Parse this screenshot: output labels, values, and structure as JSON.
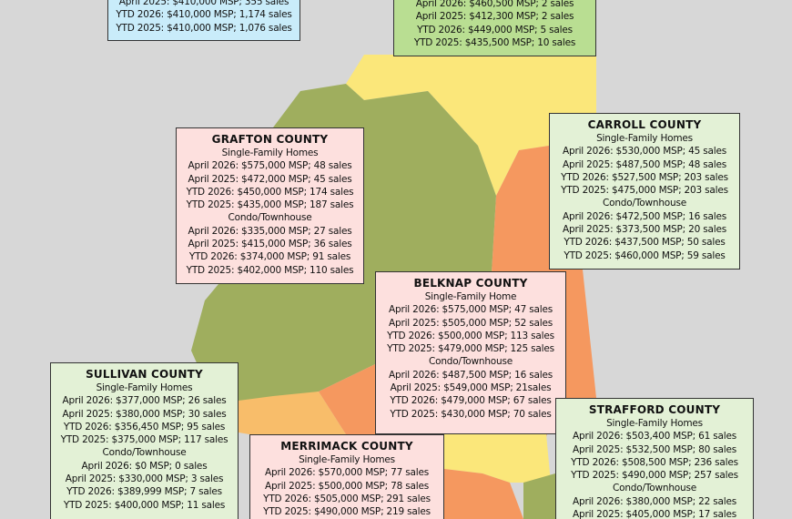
{
  "boxes": [
    {
      "title": null,
      "lines": [
        "April 2025: $410,000 MSP; 355 sales",
        "YTD 2026: $410,000 MSP; 1,174 sales",
        "YTD 2025: $410,000 MSP; 1,076 sales"
      ]
    },
    {
      "title": null,
      "lines": [
        "April 2026: $460,500 MSP; 2 sales",
        "April 2025: $412,300 MSP; 2 sales",
        "YTD 2026: $449,000 MSP; 5 sales",
        "YTD 2025: $435,500 MSP; 10 sales"
      ]
    },
    {
      "title": "GRAFTON COUNTY",
      "lines": [
        "Single-Family Homes",
        "April 2026: $575,000 MSP; 48 sales",
        "April 2025: $472,000 MSP; 45 sales",
        "YTD 2026: $450,000 MSP; 174 sales",
        "YTD 2025: $435,000 MSP; 187 sales",
        "Condo/Townhouse",
        "April 2026: $335,000 MSP; 27 sales",
        "April 2025: $415,000 MSP; 36 sales",
        "YTD 2026: $374,000 MSP; 91 sales",
        "YTD 2025: $402,000 MSP; 110 sales"
      ]
    },
    {
      "title": "CARROLL COUNTY",
      "lines": [
        "Single-Family Homes",
        "April 2026: $530,000 MSP; 45 sales",
        "April 2025: $487,500 MSP; 48 sales",
        "YTD 2026: $527,500 MSP; 203 sales",
        "YTD 2025: $475,000 MSP; 203 sales",
        "Condo/Townhouse",
        "April 2026: $472,500 MSP; 16 sales",
        "April 2025: $373,500 MSP; 20 sales",
        "YTD 2026: $437,500 MSP; 50 sales",
        "YTD 2025: $460,000 MSP; 59 sales"
      ]
    },
    {
      "title": "BELKNAP COUNTY",
      "lines": [
        "Single-Family Home",
        "April 2026: $575,000 MSP; 47 sales",
        "April 2025: $505,000 MSP; 52 sales",
        "YTD 2026: $500,000 MSP; 113 sales",
        "YTD 2025: $479,000 MSP; 125 sales",
        "Condo/Townhouse",
        "April 2026: $487,500 MSP; 16 sales",
        "April 2025: $549,000 MSP; 21sales",
        "YTD 2026: $479,000 MSP; 67 sales",
        "YTD 2025: $430,000 MSP; 70 sales"
      ]
    },
    {
      "title": "SULLIVAN COUNTY",
      "lines": [
        "Single-Family Homes",
        "April 2026: $377,000 MSP; 26 sales",
        "April 2025: $380,000 MSP; 30 sales",
        "YTD 2026: $356,450 MSP; 95 sales",
        "YTD 2025: $375,000 MSP; 117 sales",
        "Condo/Townhouse",
        "April 2026: $0 MSP; 0 sales",
        "April 2025: $330,000 MSP; 3 sales",
        "YTD 2026: $389,999 MSP; 7 sales",
        "YTD 2025: $400,000 MSP; 11 sales"
      ]
    },
    {
      "title": "STRAFFORD COUNTY",
      "lines": [
        "Single-Family Homes",
        "April 2026: $503,400 MSP; 61 sales",
        "April 2025: $532,500 MSP; 80 sales",
        "YTD 2026: $508,500 MSP; 236 sales",
        "YTD 2025: $490,000 MSP; 257 sales",
        "Condo/Townhouse",
        "April 2026: $380,000 MSP; 22 sales",
        "April 2025: $405,000 MSP; 17 sales"
      ]
    },
    {
      "title": "MERRIMACK COUNTY",
      "lines": [
        "Single-Family Homes",
        "April 2026: $570,000 MSP; 77 sales",
        "April 2025: $500,000 MSP; 78 sales",
        "YTD 2026: $505,000 MSP; 291 sales",
        "YTD 2025: $490,000 MSP; 219 sales"
      ]
    }
  ]
}
